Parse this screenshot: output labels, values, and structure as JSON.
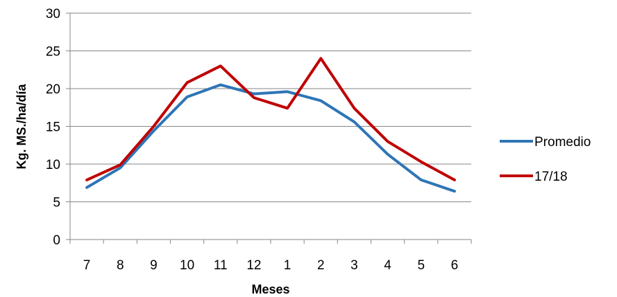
{
  "chart_data": {
    "type": "line",
    "title": "",
    "xlabel": "Meses",
    "ylabel": "Kg. MS./ha/día",
    "categories": [
      "7",
      "8",
      "9",
      "10",
      "11",
      "12",
      "1",
      "2",
      "3",
      "4",
      "5",
      "6"
    ],
    "ylim": [
      0,
      30
    ],
    "yticks": [
      0,
      5,
      10,
      15,
      20,
      25,
      30
    ],
    "grid": "horizontal",
    "legend_position": "right",
    "series": [
      {
        "name": "Promedio",
        "color": "#2E75B6",
        "values": [
          6.9,
          9.5,
          14.4,
          18.9,
          20.5,
          19.3,
          19.6,
          18.4,
          15.6,
          11.3,
          7.9,
          6.4
        ]
      },
      {
        "name": "17/18",
        "color": "#C00000",
        "values": [
          7.9,
          9.9,
          15.0,
          20.8,
          23.0,
          18.8,
          17.4,
          24.0,
          17.4,
          13.0,
          10.3,
          7.9
        ]
      }
    ]
  }
}
